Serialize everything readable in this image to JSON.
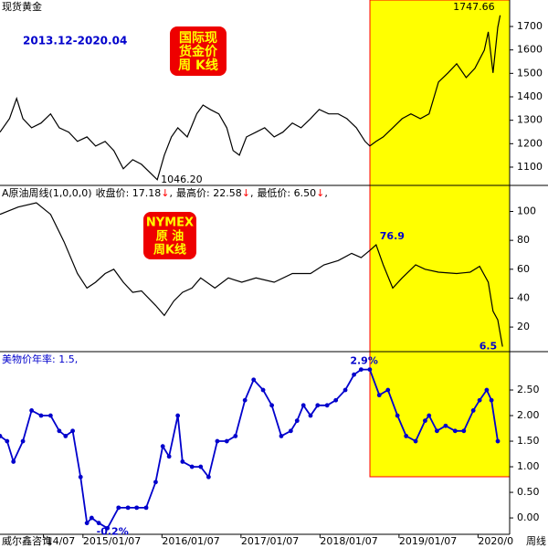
{
  "chart_data": [
    {
      "type": "line",
      "title": "现货黄金",
      "subtitle": "2013.12-2020.04",
      "badge": [
        "国际现",
        "货金价",
        "周 K线"
      ],
      "color": "#000000",
      "x": [
        2013.95,
        2014.07,
        2014.16,
        2014.24,
        2014.35,
        2014.47,
        2014.59,
        2014.7,
        2014.82,
        2014.93,
        2015.05,
        2015.16,
        2015.28,
        2015.39,
        2015.51,
        2015.63,
        2015.74,
        2015.86,
        2015.94,
        2016.03,
        2016.12,
        2016.2,
        2016.32,
        2016.44,
        2016.52,
        2016.61,
        2016.72,
        2016.82,
        2016.9,
        2016.98,
        2017.07,
        2017.19,
        2017.3,
        2017.42,
        2017.53,
        2017.65,
        2017.76,
        2017.88,
        2017.99,
        2018.11,
        2018.23,
        2018.34,
        2018.46,
        2018.57,
        2018.63,
        2018.71,
        2018.8,
        2018.92,
        2019.04,
        2019.15,
        2019.27,
        2019.38,
        2019.5,
        2019.62,
        2019.73,
        2019.85,
        2019.96,
        2020.08,
        2020.13,
        2020.19,
        2020.25,
        2020.28
      ],
      "values": [
        1249,
        1307,
        1393,
        1307,
        1268,
        1288,
        1327,
        1268,
        1249,
        1210,
        1229,
        1190,
        1210,
        1171,
        1093,
        1132,
        1112,
        1073,
        1046.2,
        1151,
        1229,
        1268,
        1229,
        1327,
        1365,
        1346,
        1327,
        1268,
        1171,
        1151,
        1229,
        1249,
        1268,
        1229,
        1249,
        1288,
        1268,
        1307,
        1346,
        1327,
        1327,
        1307,
        1268,
        1210,
        1190,
        1210,
        1229,
        1268,
        1307,
        1327,
        1307,
        1327,
        1463,
        1502,
        1541,
        1482,
        1521,
        1599,
        1677,
        1502,
        1696,
        1747.66
      ],
      "value_labels": [
        null,
        null,
        null,
        null,
        null,
        null,
        null,
        null,
        null,
        null,
        null,
        null,
        null,
        null,
        null,
        null,
        null,
        null,
        "1046.20",
        null,
        null,
        null,
        null,
        null,
        null,
        null,
        null,
        null,
        null,
        null,
        null,
        null,
        null,
        null,
        null,
        null,
        null,
        null,
        null,
        null,
        null,
        null,
        null,
        null,
        null,
        null,
        null,
        null,
        null,
        null,
        null,
        null,
        null,
        null,
        null,
        null,
        null,
        null,
        null,
        null,
        null,
        "1747.66"
      ],
      "xlim": [
        2013.95,
        2020.4
      ],
      "ylim": [
        1022,
        1813
      ],
      "yticks": [
        1100,
        1200,
        1300,
        1400,
        1500,
        1600,
        1700
      ]
    },
    {
      "type": "line",
      "title": "A原油周线(1,0,0,0)",
      "stats": [
        {
          "label": "收盘价: 17.18",
          "arrow": "↓",
          "sep": ","
        },
        {
          "label": "最高价: 22.58",
          "arrow": "↓",
          "sep": ","
        },
        {
          "label": "最低价: 6.50",
          "arrow": "↓",
          "sep": ","
        }
      ],
      "badge": [
        "NYMEX",
        "原 油",
        "周K线"
      ],
      "color": "#000000",
      "x": [
        2013.95,
        2014.18,
        2014.41,
        2014.59,
        2014.76,
        2014.93,
        2015.05,
        2015.16,
        2015.28,
        2015.39,
        2015.51,
        2015.63,
        2015.74,
        2015.92,
        2016.03,
        2016.15,
        2016.26,
        2016.38,
        2016.49,
        2016.67,
        2016.84,
        2017.01,
        2017.19,
        2017.42,
        2017.65,
        2017.88,
        2018.05,
        2018.23,
        2018.4,
        2018.52,
        2018.63,
        2018.71,
        2018.8,
        2018.92,
        2019.04,
        2019.21,
        2019.33,
        2019.5,
        2019.73,
        2019.9,
        2020.02,
        2020.13,
        2020.19,
        2020.25,
        2020.31
      ],
      "values": [
        98,
        103,
        106,
        98,
        79,
        57,
        47,
        51,
        57,
        60,
        51,
        44,
        45,
        35,
        28,
        38,
        44,
        47,
        54,
        47,
        54,
        51,
        54,
        51,
        57,
        57,
        63,
        66,
        71,
        68,
        73,
        76.9,
        63,
        47,
        54,
        63,
        60,
        58,
        57,
        58,
        62,
        51,
        31,
        25,
        6.5
      ],
      "value_labels": [
        null,
        null,
        null,
        null,
        null,
        null,
        null,
        null,
        null,
        null,
        null,
        null,
        null,
        null,
        null,
        null,
        null,
        null,
        null,
        null,
        null,
        null,
        null,
        null,
        null,
        null,
        null,
        null,
        null,
        null,
        null,
        "76.9",
        null,
        null,
        null,
        null,
        null,
        null,
        null,
        null,
        null,
        null,
        null,
        null,
        "6.5"
      ],
      "xlim": [
        2013.95,
        2020.4
      ],
      "ylim": [
        3,
        118
      ],
      "yticks": [
        20,
        40,
        60,
        80,
        100
      ]
    },
    {
      "type": "line",
      "legend": "美物价年率: 1.5,",
      "color": "#0000cc",
      "markers": true,
      "x": [
        2013.95,
        2014.04,
        2014.12,
        2014.24,
        2014.35,
        2014.47,
        2014.59,
        2014.7,
        2014.78,
        2014.87,
        2014.97,
        2015.05,
        2015.11,
        2015.2,
        2015.31,
        2015.45,
        2015.57,
        2015.68,
        2015.8,
        2015.92,
        2016.01,
        2016.09,
        2016.2,
        2016.26,
        2016.38,
        2016.49,
        2016.59,
        2016.7,
        2016.82,
        2016.93,
        2017.05,
        2017.16,
        2017.28,
        2017.39,
        2017.51,
        2017.63,
        2017.71,
        2017.79,
        2017.88,
        2017.97,
        2018.09,
        2018.2,
        2018.32,
        2018.43,
        2018.52,
        2018.63,
        2018.75,
        2018.86,
        2018.98,
        2019.09,
        2019.21,
        2019.33,
        2019.38,
        2019.48,
        2019.59,
        2019.71,
        2019.82,
        2019.94,
        2020.02,
        2020.11,
        2020.17,
        2020.25
      ],
      "values": [
        1.6,
        1.5,
        1.1,
        1.5,
        2.1,
        2.0,
        2.0,
        1.7,
        1.6,
        1.7,
        0.8,
        -0.1,
        0.0,
        -0.1,
        -0.2,
        0.2,
        0.2,
        0.2,
        0.2,
        0.7,
        1.4,
        1.2,
        2.0,
        1.1,
        1.0,
        1.0,
        0.8,
        1.5,
        1.5,
        1.6,
        2.3,
        2.7,
        2.5,
        2.2,
        1.6,
        1.7,
        1.9,
        2.2,
        2.0,
        2.2,
        2.2,
        2.3,
        2.5,
        2.8,
        2.9,
        2.9,
        2.4,
        2.5,
        2.0,
        1.6,
        1.5,
        1.9,
        2.0,
        1.7,
        1.8,
        1.7,
        1.7,
        2.1,
        2.3,
        2.5,
        2.3,
        1.5
      ],
      "value_labels": [
        null,
        null,
        null,
        null,
        null,
        null,
        null,
        null,
        null,
        null,
        null,
        null,
        null,
        null,
        "-0.2%",
        null,
        null,
        null,
        null,
        null,
        null,
        null,
        null,
        null,
        null,
        null,
        null,
        null,
        null,
        null,
        null,
        null,
        null,
        null,
        null,
        null,
        null,
        null,
        null,
        null,
        null,
        null,
        null,
        null,
        "2.9%",
        null,
        null,
        null,
        null,
        null,
        null,
        null,
        null,
        null,
        null,
        null,
        null,
        null,
        null,
        null,
        null,
        null
      ],
      "xlim": [
        2013.95,
        2020.4
      ],
      "ylim": [
        -0.32,
        3.25
      ],
      "yticks": [
        {
          "value": 0,
          "label": "0.00"
        },
        {
          "value": 0.5,
          "label": "0.50"
        },
        {
          "value": 1,
          "label": "1.00"
        },
        {
          "value": 1.5,
          "label": "1.50"
        },
        {
          "value": 2,
          "label": "2.00"
        },
        {
          "value": 2.5,
          "label": "2.50"
        }
      ],
      "xticks": [
        {
          "value": 2014.5,
          "label": "'14/07"
        },
        {
          "value": 2015.0,
          "label": "2015/01/07"
        },
        {
          "value": 2016.0,
          "label": "2016/01/07"
        },
        {
          "value": 2017.0,
          "label": "2017/01/07"
        },
        {
          "value": 2018.0,
          "label": "2018/01/07"
        },
        {
          "value": 2019.0,
          "label": "2019/01/07"
        },
        {
          "value": 2020.0,
          "label": "2020/0"
        }
      ]
    }
  ],
  "footer": {
    "left": "威尔鑫咨询",
    "right": "周线"
  }
}
